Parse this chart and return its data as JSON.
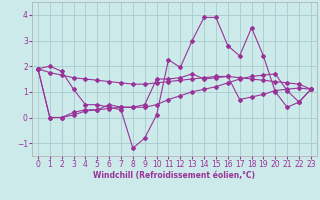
{
  "xlabel": "Windchill (Refroidissement éolien,°C)",
  "bg_color": "#cceaea",
  "grid_color": "#aacccc",
  "line_color": "#993399",
  "xlim": [
    -0.5,
    23.5
  ],
  "ylim": [
    -1.5,
    4.5
  ],
  "yticks": [
    -1,
    0,
    1,
    2,
    3,
    4
  ],
  "xticks": [
    0,
    1,
    2,
    3,
    4,
    5,
    6,
    7,
    8,
    9,
    10,
    11,
    12,
    13,
    14,
    15,
    16,
    17,
    18,
    19,
    20,
    21,
    22,
    23
  ],
  "series": [
    [
      1.9,
      2.0,
      1.8,
      1.1,
      0.5,
      0.5,
      0.4,
      0.3,
      -1.2,
      -0.8,
      0.1,
      2.25,
      1.95,
      3.0,
      3.9,
      3.9,
      2.8,
      2.4,
      3.5,
      2.4,
      1.0,
      0.4,
      0.6,
      1.1
    ],
    [
      1.9,
      0.0,
      0.0,
      0.2,
      0.3,
      0.3,
      0.5,
      0.4,
      0.4,
      0.5,
      1.5,
      1.5,
      1.55,
      1.7,
      1.5,
      1.55,
      1.6,
      0.7,
      0.8,
      0.9,
      1.05,
      1.1,
      1.15,
      1.1
    ],
    [
      1.9,
      1.75,
      1.65,
      1.55,
      1.5,
      1.45,
      1.4,
      1.35,
      1.3,
      1.3,
      1.35,
      1.4,
      1.45,
      1.5,
      1.55,
      1.6,
      1.6,
      1.55,
      1.5,
      1.45,
      1.4,
      1.35,
      1.3,
      1.1
    ],
    [
      1.9,
      0.0,
      0.0,
      0.1,
      0.25,
      0.3,
      0.35,
      0.4,
      0.4,
      0.4,
      0.5,
      0.7,
      0.85,
      1.0,
      1.1,
      1.2,
      1.35,
      1.5,
      1.6,
      1.65,
      1.7,
      1.05,
      0.6,
      1.1
    ]
  ]
}
